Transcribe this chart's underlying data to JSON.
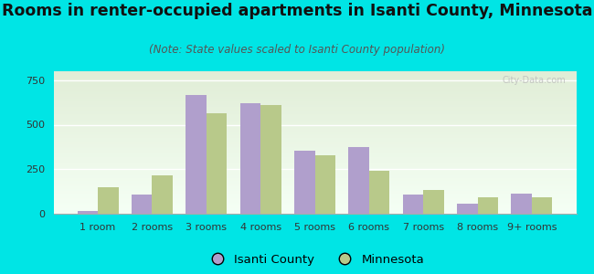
{
  "title": "Rooms in renter-occupied apartments in Isanti County, Minnesota",
  "subtitle": "(Note: State values scaled to Isanti County population)",
  "categories": [
    "1 room",
    "2 rooms",
    "3 rooms",
    "4 rooms",
    "5 rooms",
    "6 rooms",
    "7 rooms",
    "8 rooms",
    "9+ rooms"
  ],
  "isanti_values": [
    15,
    110,
    665,
    620,
    355,
    375,
    110,
    55,
    115
  ],
  "minnesota_values": [
    150,
    215,
    565,
    610,
    330,
    240,
    135,
    90,
    90
  ],
  "isanti_color": "#b09fcc",
  "minnesota_color": "#b8c98a",
  "background_color": "#00e5e5",
  "ylim": [
    0,
    800
  ],
  "yticks": [
    0,
    250,
    500,
    750
  ],
  "bar_width": 0.38,
  "title_fontsize": 12.5,
  "subtitle_fontsize": 8.5,
  "tick_fontsize": 8,
  "legend_fontsize": 9.5
}
